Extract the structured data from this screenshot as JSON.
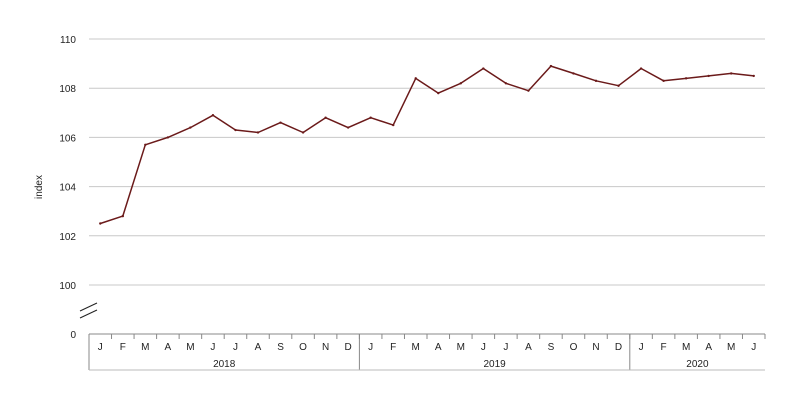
{
  "chart_data": {
    "type": "line",
    "ylabel": "index",
    "y_ticks": [
      0,
      100,
      102,
      104,
      106,
      108,
      110
    ],
    "ylim": [
      100,
      110
    ],
    "axis_break": true,
    "grid": "horizontal",
    "line_color": "#6b1a1a",
    "month_labels": [
      "J",
      "F",
      "M",
      "A",
      "M",
      "J",
      "J",
      "A",
      "S",
      "O",
      "N",
      "D",
      "J",
      "F",
      "M",
      "A",
      "M",
      "J",
      "J",
      "A",
      "S",
      "O",
      "N",
      "D",
      "J",
      "F",
      "M",
      "A",
      "M",
      "J"
    ],
    "years": [
      {
        "label": "2018",
        "months": 12
      },
      {
        "label": "2019",
        "months": 12
      },
      {
        "label": "2020",
        "months": 6
      }
    ],
    "values": [
      102.5,
      102.8,
      105.7,
      106.0,
      106.4,
      106.9,
      106.3,
      106.2,
      106.6,
      106.2,
      106.8,
      106.4,
      106.8,
      106.5,
      108.4,
      107.8,
      108.2,
      108.8,
      108.2,
      107.9,
      108.9,
      108.6,
      108.3,
      108.1,
      108.8,
      108.3,
      108.4,
      108.5,
      108.6,
      108.5
    ]
  }
}
